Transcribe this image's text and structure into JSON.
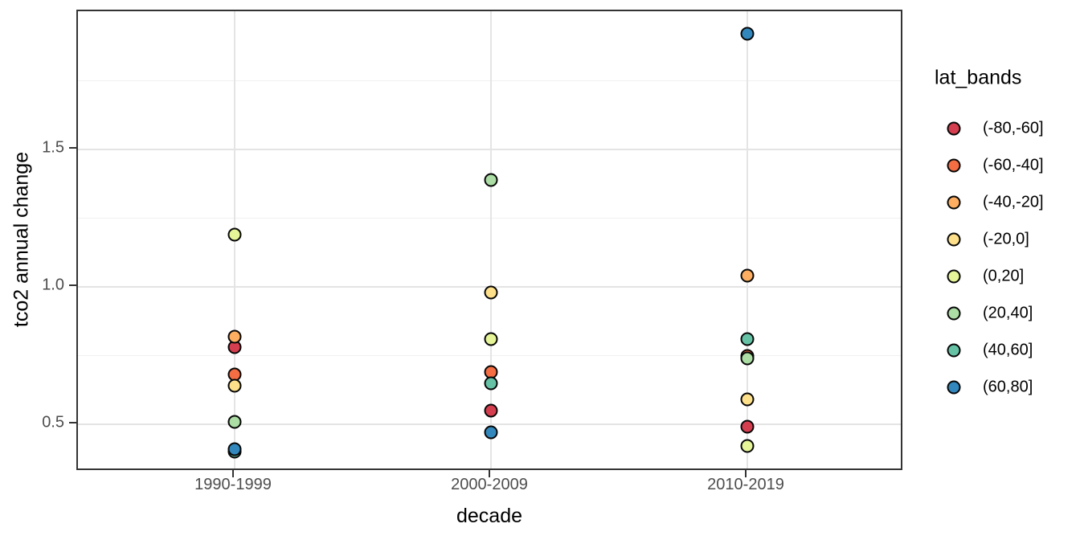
{
  "figure": {
    "background_color": "#ffffff",
    "panel_border_color": "#333333",
    "gridline_color_major": "#e4e4e4",
    "gridline_color_minor": "#f1f1f1",
    "tick_label_color": "#4d4d4d",
    "point_outline_color": "#000000"
  },
  "chart_data": {
    "type": "scatter",
    "title": "",
    "xlabel": "decade",
    "ylabel": "tco2 annual change",
    "categories": [
      "1990-1999",
      "2000-2009",
      "2010-2019"
    ],
    "y_axis": {
      "major_ticks": [
        {
          "value": 0.5,
          "label": "0.5"
        },
        {
          "value": 1.0,
          "label": "1.0"
        },
        {
          "value": 1.5,
          "label": "1.5"
        }
      ],
      "minor_gridlines": [
        0.75,
        1.25,
        1.75
      ],
      "ylim": [
        0.33,
        2.0
      ]
    },
    "grid": "on",
    "legend": {
      "title": "lat_bands",
      "position": "right"
    },
    "series": [
      {
        "name": "(-80,-60]",
        "color": "#d53e4f",
        "values": [
          0.78,
          0.55,
          0.49
        ]
      },
      {
        "name": "(-60,-40]",
        "color": "#f46d43",
        "values": [
          0.68,
          0.69,
          0.75
        ]
      },
      {
        "name": "(-40,-20]",
        "color": "#fdae61",
        "values": [
          0.82,
          null,
          1.04
        ]
      },
      {
        "name": "(-20,0]",
        "color": "#fee08b",
        "values": [
          0.64,
          0.98,
          0.59
        ]
      },
      {
        "name": "(0,20]",
        "color": "#e6f598",
        "values": [
          1.19,
          0.81,
          0.42
        ]
      },
      {
        "name": "(20,40]",
        "color": "#abdda4",
        "values": [
          0.51,
          1.39,
          0.74
        ]
      },
      {
        "name": "(40,60]",
        "color": "#66c2a5",
        "values": [
          0.4,
          0.65,
          0.81
        ]
      },
      {
        "name": "(60,80]",
        "color": "#3288bd",
        "values": [
          0.41,
          0.47,
          1.92
        ]
      }
    ],
    "notes": "Point for series (-40,-20] in 2000-2009 is not visible (occluded); values read from gridlines."
  }
}
